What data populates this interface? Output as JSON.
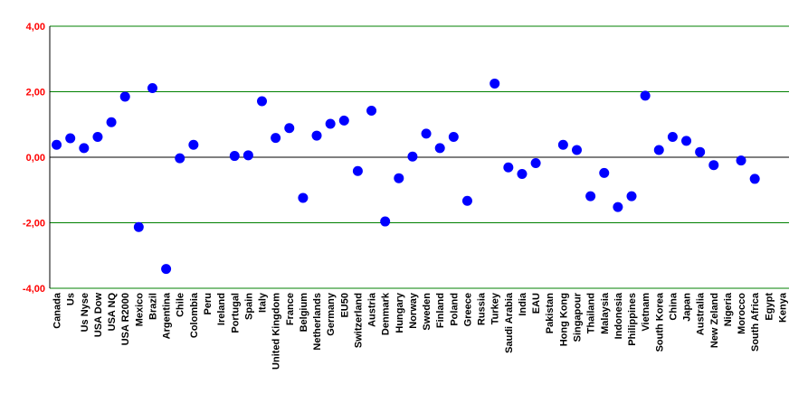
{
  "chart_data": {
    "type": "scatter",
    "title": "",
    "xlabel": "",
    "ylabel": "",
    "ylim": [
      -4,
      4
    ],
    "y_ticks": [
      "4,00",
      "2,00",
      "0,00",
      "-2,00",
      "-4,00"
    ],
    "y_tick_values": [
      4,
      2,
      0,
      -2,
      -4
    ],
    "grid": true,
    "colors": {
      "points": "#0000ff",
      "grid": "#008000",
      "axis": "#000000",
      "y_tick_text": "#ff0000"
    },
    "categories": [
      "Canada",
      "Us",
      "Us Nyse",
      "USA Dow",
      "USA NQ",
      "USA R2000",
      "Mexico",
      "Brazil",
      "Argentina",
      "Chile",
      "Colombia",
      "Peru",
      "Ireland",
      "Portugal",
      "Spain",
      "Italy",
      "United Kingdom",
      "France",
      "Belgium",
      "Netherlands",
      "Germany",
      "EU50",
      "Switzerland",
      "Austria",
      "Denmark",
      "Hungary",
      "Norway",
      "Sweden",
      "Finland",
      "Poland",
      "Greece",
      "Russia",
      "Turkey",
      "Saudi Arabia",
      "India",
      "EAU",
      "Pakistan",
      "Hong Kong",
      "Singapour",
      "Thailand",
      "Malaysia",
      "Indonesia",
      "Philippines",
      "Vietnam",
      "South Korea",
      "China",
      "Japan",
      "Australia",
      "New Zeland",
      "Nigeria",
      "Morocco",
      "South Africa",
      "Egypt",
      "Kenya"
    ],
    "values": [
      0.38,
      0.58,
      0.28,
      0.62,
      1.07,
      1.85,
      -2.13,
      2.11,
      -3.41,
      -0.03,
      0.38,
      null,
      null,
      0.04,
      0.06,
      1.71,
      0.59,
      0.89,
      -1.24,
      0.66,
      1.02,
      1.12,
      -0.42,
      1.42,
      -1.96,
      -0.64,
      0.02,
      0.72,
      0.28,
      0.62,
      -1.33,
      null,
      2.25,
      -0.31,
      -0.51,
      -0.18,
      null,
      0.38,
      0.22,
      -1.19,
      -0.48,
      -1.52,
      -1.19,
      1.88,
      0.22,
      0.62,
      0.5,
      0.16,
      -0.24,
      null,
      -0.1,
      -0.66,
      null,
      null
    ]
  }
}
